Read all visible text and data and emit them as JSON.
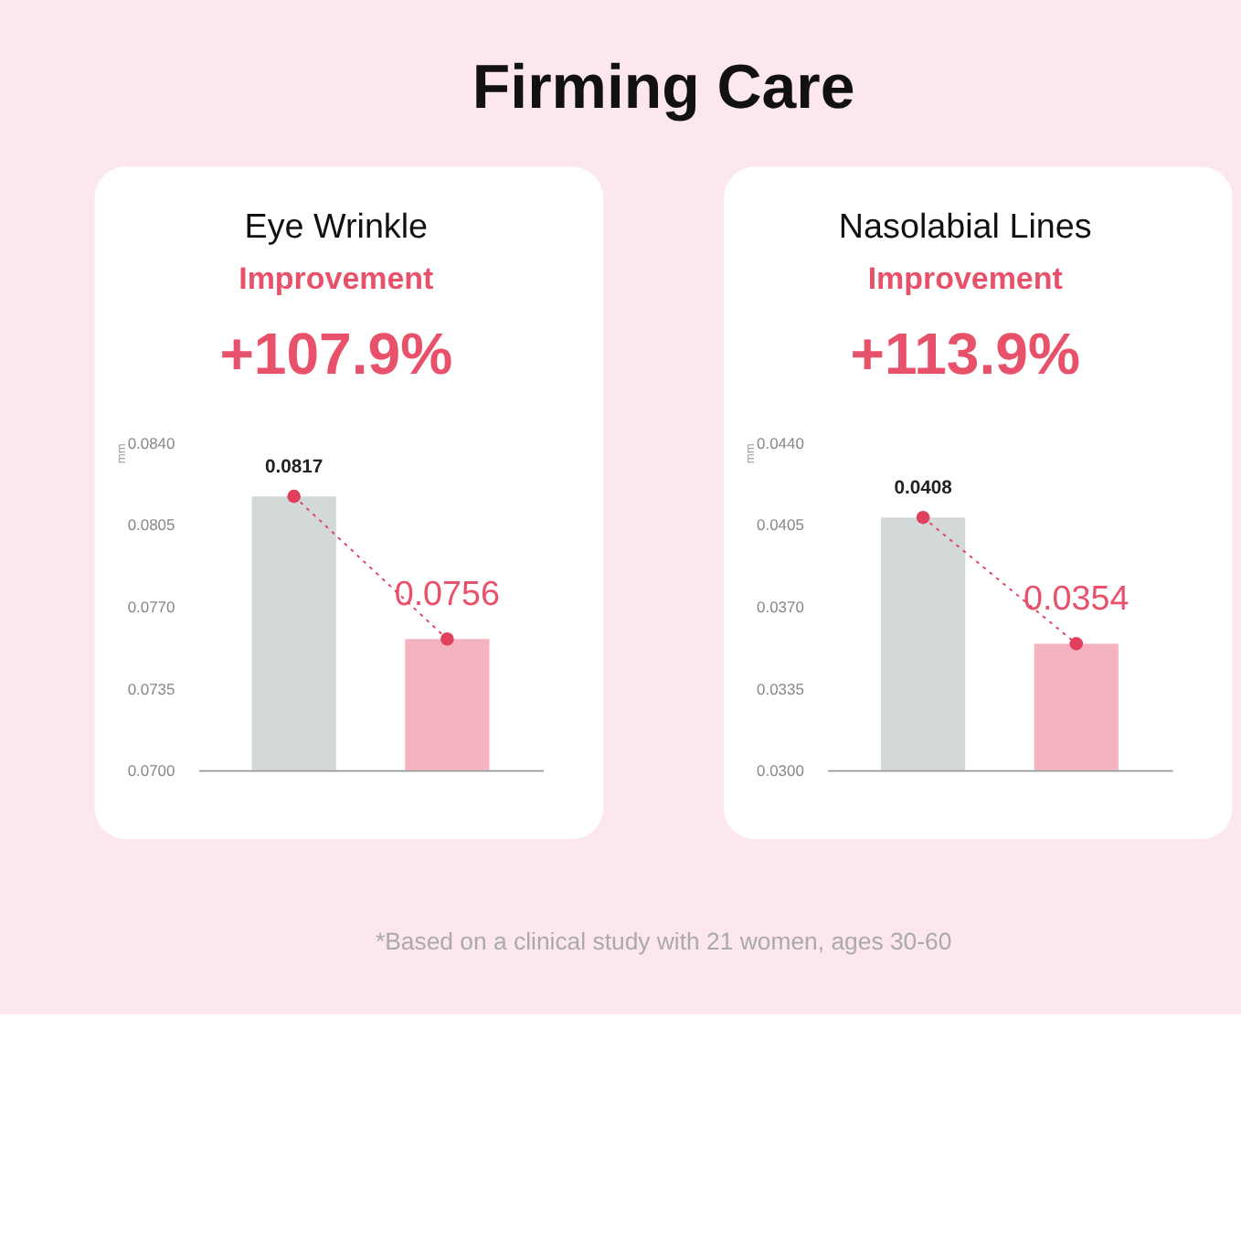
{
  "chart_data": [
    {
      "type": "bar",
      "title": "Eye Wrinkle",
      "subtitle": "Improvement",
      "ylabel": "mm",
      "categories": [
        null,
        null
      ],
      "series": [
        {
          "colors": [
            "#d3d9d8",
            "#f4b3be"
          ],
          "values": [
            0.0817,
            0.0756
          ],
          "value_labels": [
            "0.0817",
            "0.0756"
          ]
        },
        {
          "type": "line",
          "color": "#e0405e",
          "marker": "circle",
          "line_style": "dotted",
          "values": [
            0.0817,
            0.0756
          ]
        }
      ],
      "ylim": [
        0.07,
        0.084
      ],
      "yticks": [
        {
          "value": 0.07,
          "label": "0.0700"
        },
        0.0735,
        {
          "value": 0.077,
          "label": "0.0770"
        },
        0.0805,
        {
          "value": 0.084,
          "label": "0.0840"
        }
      ],
      "tick_labels": "y",
      "annotations": [
        "Firming Care",
        "+107.9%"
      ]
    },
    {
      "type": "bar",
      "title": "Nasolabial Lines",
      "subtitle": "Improvement",
      "ylabel": "mm",
      "categories": [
        null,
        null
      ],
      "series": [
        {
          "colors": [
            "#d3d9d8",
            "#f4b3be"
          ],
          "values": [
            0.0408,
            0.0354
          ],
          "value_labels": [
            "0.0408",
            "0.0354"
          ]
        },
        {
          "type": "line",
          "color": "#e0405e",
          "marker": "circle",
          "line_style": "dotted",
          "values": [
            0.0408,
            0.0354
          ]
        }
      ],
      "ylim": [
        0.03,
        0.044
      ],
      "yticks": [
        {
          "value": 0.03,
          "label": "0.0300"
        },
        0.0335,
        {
          "value": 0.037,
          "label": "0.0370"
        },
        0.0405,
        {
          "value": 0.044,
          "label": "0.0440"
        }
      ],
      "tick_labels": "y",
      "annotations": [
        "+113.9%",
        "*Based on a clinical study with 21 women, ages 30-60"
      ]
    }
  ]
}
